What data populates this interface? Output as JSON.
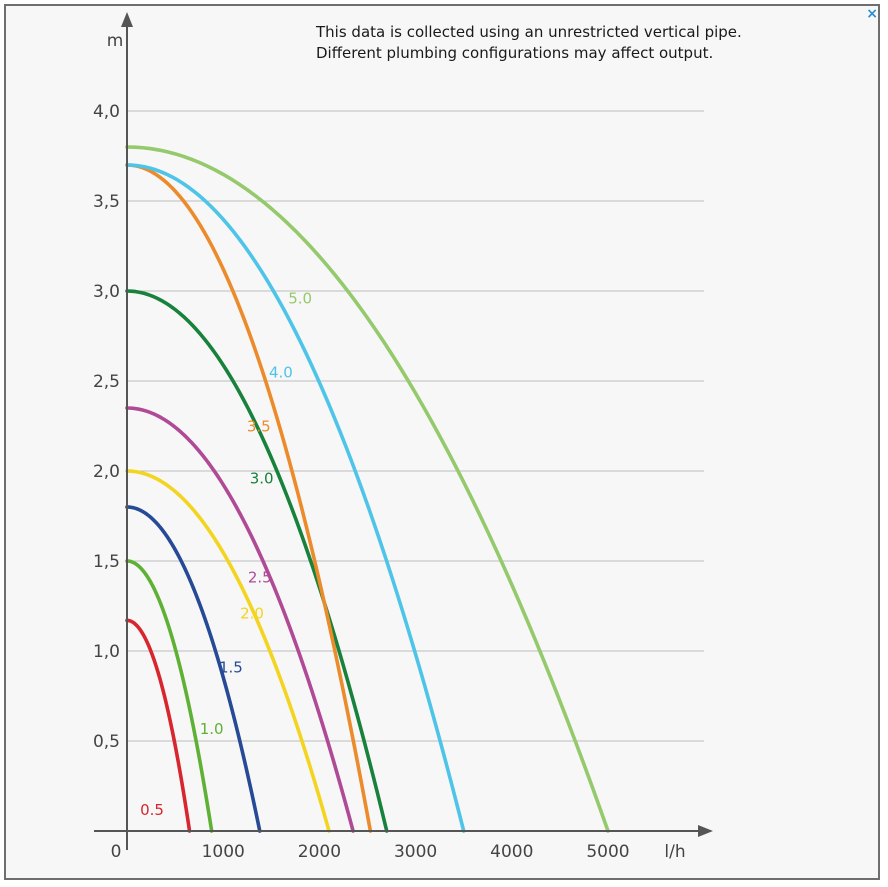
{
  "window": {
    "close_icon": "close-icon",
    "close_glyph": "×"
  },
  "note": {
    "line1": "This data is collected using an unrestricted vertical pipe.",
    "line2": "Different plumbing configurations may affect output."
  },
  "chart_data": {
    "type": "line",
    "title": "",
    "xlabel": "l/h",
    "ylabel": "m",
    "xlim": [
      0,
      6000
    ],
    "ylim": [
      0,
      4.0
    ],
    "x_ticks": [
      {
        "value": 0,
        "label": "0"
      },
      {
        "value": 1000,
        "label": "1000"
      },
      {
        "value": 2000,
        "label": "2000"
      },
      {
        "value": 3000,
        "label": "3000"
      },
      {
        "value": 4000,
        "label": "4000"
      },
      {
        "value": 5000,
        "label": "5000"
      }
    ],
    "y_ticks": [
      {
        "value": 0.5,
        "label": "0,5"
      },
      {
        "value": 1.0,
        "label": "1,0"
      },
      {
        "value": 1.5,
        "label": "1,5"
      },
      {
        "value": 2.0,
        "label": "2,0"
      },
      {
        "value": 2.5,
        "label": "2,5"
      },
      {
        "value": 3.0,
        "label": "3,0"
      },
      {
        "value": 3.5,
        "label": "3,5"
      },
      {
        "value": 4.0,
        "label": "4,0"
      }
    ],
    "grid": "horizontal",
    "series": [
      {
        "name": "0.5",
        "color": "#d7262e",
        "head": 1.17,
        "max_flow": 650,
        "label_at": [
          260,
          0.09
        ]
      },
      {
        "name": "1.0",
        "color": "#5fb135",
        "head": 1.5,
        "max_flow": 880,
        "label_at": [
          880,
          0.54
        ]
      },
      {
        "name": "1.5",
        "color": "#264a96",
        "head": 1.8,
        "max_flow": 1380,
        "label_at": [
          1080,
          0.88
        ]
      },
      {
        "name": "2.0",
        "color": "#f3d421",
        "head": 2.0,
        "max_flow": 2100,
        "label_at": [
          1300,
          1.18
        ]
      },
      {
        "name": "2.5",
        "color": "#b04a97",
        "head": 2.35,
        "max_flow": 2350,
        "label_at": [
          1380,
          1.38
        ]
      },
      {
        "name": "3.0",
        "color": "#18813b",
        "head": 3.0,
        "max_flow": 2700,
        "label_at": [
          1400,
          1.93
        ]
      },
      {
        "name": "3.5",
        "color": "#ec8b2c",
        "head": 3.7,
        "max_flow": 2530,
        "label_at": [
          1370,
          2.22
        ]
      },
      {
        "name": "4.0",
        "color": "#4ec4e8",
        "head": 3.7,
        "max_flow": 3500,
        "label_at": [
          1600,
          2.52
        ]
      },
      {
        "name": "5.0",
        "color": "#94c96c",
        "head": 3.8,
        "max_flow": 5000,
        "label_at": [
          1800,
          2.93
        ]
      }
    ]
  }
}
